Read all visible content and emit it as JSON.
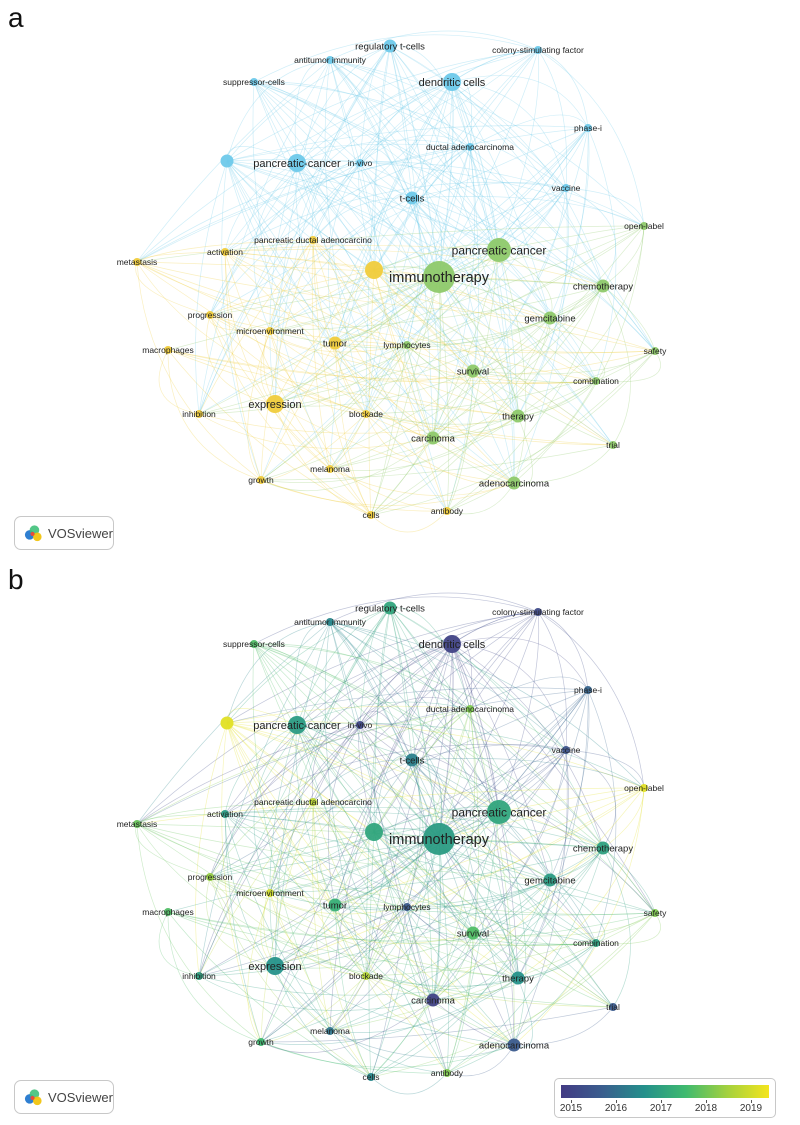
{
  "panels": {
    "a": "a",
    "b": "b"
  },
  "brand": {
    "label": "VOSviewer",
    "icon": "vosviewer-logo-icon"
  },
  "legend": {
    "years": [
      "2015",
      "2016",
      "2017",
      "2018",
      "2019"
    ],
    "colors": [
      "#433b84",
      "#3a5e8e",
      "#24908b",
      "#3fba6f",
      "#a4d13e",
      "#f4e51e"
    ]
  },
  "clusters": {
    "blue": "#6ec9ea",
    "green": "#8ec96a",
    "yellow": "#f0cc3c"
  },
  "nodes": [
    {
      "id": "regulatory-t-cells",
      "label": "regulatory t-cells",
      "cluster": "blue",
      "year": 2017.0,
      "w": 2
    },
    {
      "id": "colony-stimulating-factor",
      "label": "colony-stimulating factor",
      "cluster": "blue",
      "year": 2015.2,
      "w": 1
    },
    {
      "id": "antitumor-immunity",
      "label": "antitumor immunity",
      "cluster": "blue",
      "year": 2016.4,
      "w": 1
    },
    {
      "id": "suppressor-cells",
      "label": "suppressor-cells",
      "cluster": "blue",
      "year": 2017.6,
      "w": 1
    },
    {
      "id": "dendritic-cells",
      "label": "dendritic cells",
      "cluster": "blue",
      "year": 2015.0,
      "w": 3
    },
    {
      "id": "phase-i",
      "label": "phase-i",
      "cluster": "blue",
      "year": 2015.8,
      "w": 1
    },
    {
      "id": "unlabeled-node",
      "label": "",
      "cluster": "blue",
      "year": 2019.0,
      "w": 2
    },
    {
      "id": "pancreatic-cancer-hyphen",
      "label": "pancreatic-cancer",
      "cluster": "blue",
      "year": 2016.8,
      "w": 3
    },
    {
      "id": "in-vivo",
      "label": "in-vivo",
      "cluster": "blue",
      "year": 2015.1,
      "w": 1
    },
    {
      "id": "ductal-adenocarcinoma",
      "label": "ductal adenocarcinoma",
      "cluster": "blue",
      "year": 2018.0,
      "w": 1
    },
    {
      "id": "vaccine",
      "label": "vaccine",
      "cluster": "blue",
      "year": 2015.4,
      "w": 1
    },
    {
      "id": "t-cells",
      "label": "t-cells",
      "cluster": "blue",
      "year": 2016.3,
      "w": 2
    },
    {
      "id": "open-label",
      "label": "open-label",
      "cluster": "green",
      "year": 2019.0,
      "w": 1
    },
    {
      "id": "metastasis",
      "label": "metastasis",
      "cluster": "yellow",
      "year": 2017.8,
      "w": 1
    },
    {
      "id": "activation",
      "label": "activation",
      "cluster": "yellow",
      "year": 2016.8,
      "w": 1
    },
    {
      "id": "pancreatic-ductal-adenocarcino",
      "label": "pancreatic ductal adenocarcino",
      "cluster": "yellow",
      "year": 2018.6,
      "w": 1
    },
    {
      "id": "pancreatic-cancer",
      "label": "pancreatic cancer",
      "cluster": "green",
      "year": 2017.0,
      "w": 4
    },
    {
      "id": "immunotherapy",
      "label": "immunotherapy",
      "cluster": "green",
      "year": 2016.8,
      "w": 5
    },
    {
      "id": "immunotherapy-companion",
      "label": "",
      "cluster": "yellow",
      "year": 2017.0,
      "w": 3
    },
    {
      "id": "chemotherapy",
      "label": "chemotherapy",
      "cluster": "green",
      "year": 2016.9,
      "w": 2
    },
    {
      "id": "progression",
      "label": "progression",
      "cluster": "yellow",
      "year": 2018.2,
      "w": 1
    },
    {
      "id": "gemcitabine",
      "label": "gemcitabine",
      "cluster": "green",
      "year": 2016.8,
      "w": 2
    },
    {
      "id": "microenvironment",
      "label": "microenvironment",
      "cluster": "yellow",
      "year": 2018.8,
      "w": 1
    },
    {
      "id": "macrophages",
      "label": "macrophages",
      "cluster": "yellow",
      "year": 2017.6,
      "w": 1
    },
    {
      "id": "tumor",
      "label": "tumor",
      "cluster": "yellow",
      "year": 2017.2,
      "w": 2
    },
    {
      "id": "lymphocytes",
      "label": "lymphocytes",
      "cluster": "green",
      "year": 2015.6,
      "w": 1
    },
    {
      "id": "safety",
      "label": "safety",
      "cluster": "green",
      "year": 2018.0,
      "w": 1
    },
    {
      "id": "survival",
      "label": "survival",
      "cluster": "green",
      "year": 2017.6,
      "w": 2
    },
    {
      "id": "combination",
      "label": "combination",
      "cluster": "green",
      "year": 2016.9,
      "w": 1
    },
    {
      "id": "expression",
      "label": "expression",
      "cluster": "yellow",
      "year": 2016.6,
      "w": 3
    },
    {
      "id": "inhibition",
      "label": "inhibition",
      "cluster": "yellow",
      "year": 2016.9,
      "w": 1
    },
    {
      "id": "blockade",
      "label": "blockade",
      "cluster": "yellow",
      "year": 2018.5,
      "w": 1
    },
    {
      "id": "therapy",
      "label": "therapy",
      "cluster": "green",
      "year": 2016.6,
      "w": 2
    },
    {
      "id": "carcinoma",
      "label": "carcinoma",
      "cluster": "green",
      "year": 2015.0,
      "w": 2
    },
    {
      "id": "trial",
      "label": "trial",
      "cluster": "green",
      "year": 2015.6,
      "w": 1
    },
    {
      "id": "melanoma",
      "label": "melanoma",
      "cluster": "yellow",
      "year": 2016.1,
      "w": 1
    },
    {
      "id": "growth",
      "label": "growth",
      "cluster": "yellow",
      "year": 2017.4,
      "w": 1
    },
    {
      "id": "adenocarcinoma",
      "label": "adenocarcinoma",
      "cluster": "green",
      "year": 2015.6,
      "w": 2
    },
    {
      "id": "cells",
      "label": "cells",
      "cluster": "yellow",
      "year": 2016.4,
      "w": 1
    },
    {
      "id": "antibody",
      "label": "antibody",
      "cluster": "yellow",
      "year": 2018.0,
      "w": 1
    }
  ]
}
